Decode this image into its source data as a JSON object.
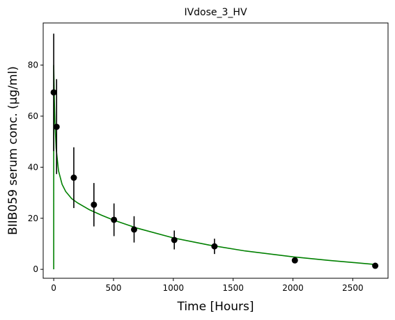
{
  "chart_data": {
    "type": "scatter",
    "title": "IVdose_3_HV",
    "xlabel": "Time [Hours]",
    "ylabel": "BIIB059 serum conc. (µg/ml)",
    "xlim": [
      -88,
      2795
    ],
    "ylim": [
      -3.5,
      96.5
    ],
    "xticks": [
      0,
      500,
      1000,
      1500,
      2000,
      2500
    ],
    "yticks": [
      0,
      20,
      40,
      60,
      80
    ],
    "grid": false,
    "legend": "none",
    "series": [
      {
        "type": "errorbar",
        "color": "#000000",
        "points": [
          {
            "x": 0,
            "y": 69.3,
            "ylow": 46.3,
            "yhigh": 92.3
          },
          {
            "x": 24,
            "y": 55.8,
            "ylow": 37.3,
            "yhigh": 74.5
          },
          {
            "x": 168,
            "y": 35.9,
            "ylow": 24.0,
            "yhigh": 47.8
          },
          {
            "x": 336,
            "y": 25.3,
            "ylow": 16.8,
            "yhigh": 33.8
          },
          {
            "x": 504,
            "y": 19.4,
            "ylow": 13.0,
            "yhigh": 25.8
          },
          {
            "x": 672,
            "y": 15.6,
            "ylow": 10.5,
            "yhigh": 20.8
          },
          {
            "x": 1008,
            "y": 11.5,
            "ylow": 7.8,
            "yhigh": 15.2
          },
          {
            "x": 1344,
            "y": 9.0,
            "ylow": 6.0,
            "yhigh": 12.0
          },
          {
            "x": 2016,
            "y": 3.5,
            "ylow": 2.8,
            "yhigh": 4.3
          },
          {
            "x": 2688,
            "y": 1.4,
            "ylow": 1.0,
            "yhigh": 1.8
          }
        ]
      },
      {
        "type": "line",
        "color": "#008000",
        "x": [
          0,
          0,
          2,
          5,
          10,
          20,
          40,
          70,
          100,
          150,
          200,
          300,
          400,
          500,
          700,
          1000,
          1300,
          1600,
          2000,
          2300,
          2688
        ],
        "y": [
          0,
          80.0,
          75.0,
          67.0,
          58.0,
          47.5,
          38.6,
          33.3,
          30.5,
          27.7,
          26.0,
          23.3,
          21.2,
          19.3,
          16.1,
          12.3,
          9.5,
          7.2,
          4.9,
          3.5,
          1.9
        ]
      }
    ]
  }
}
